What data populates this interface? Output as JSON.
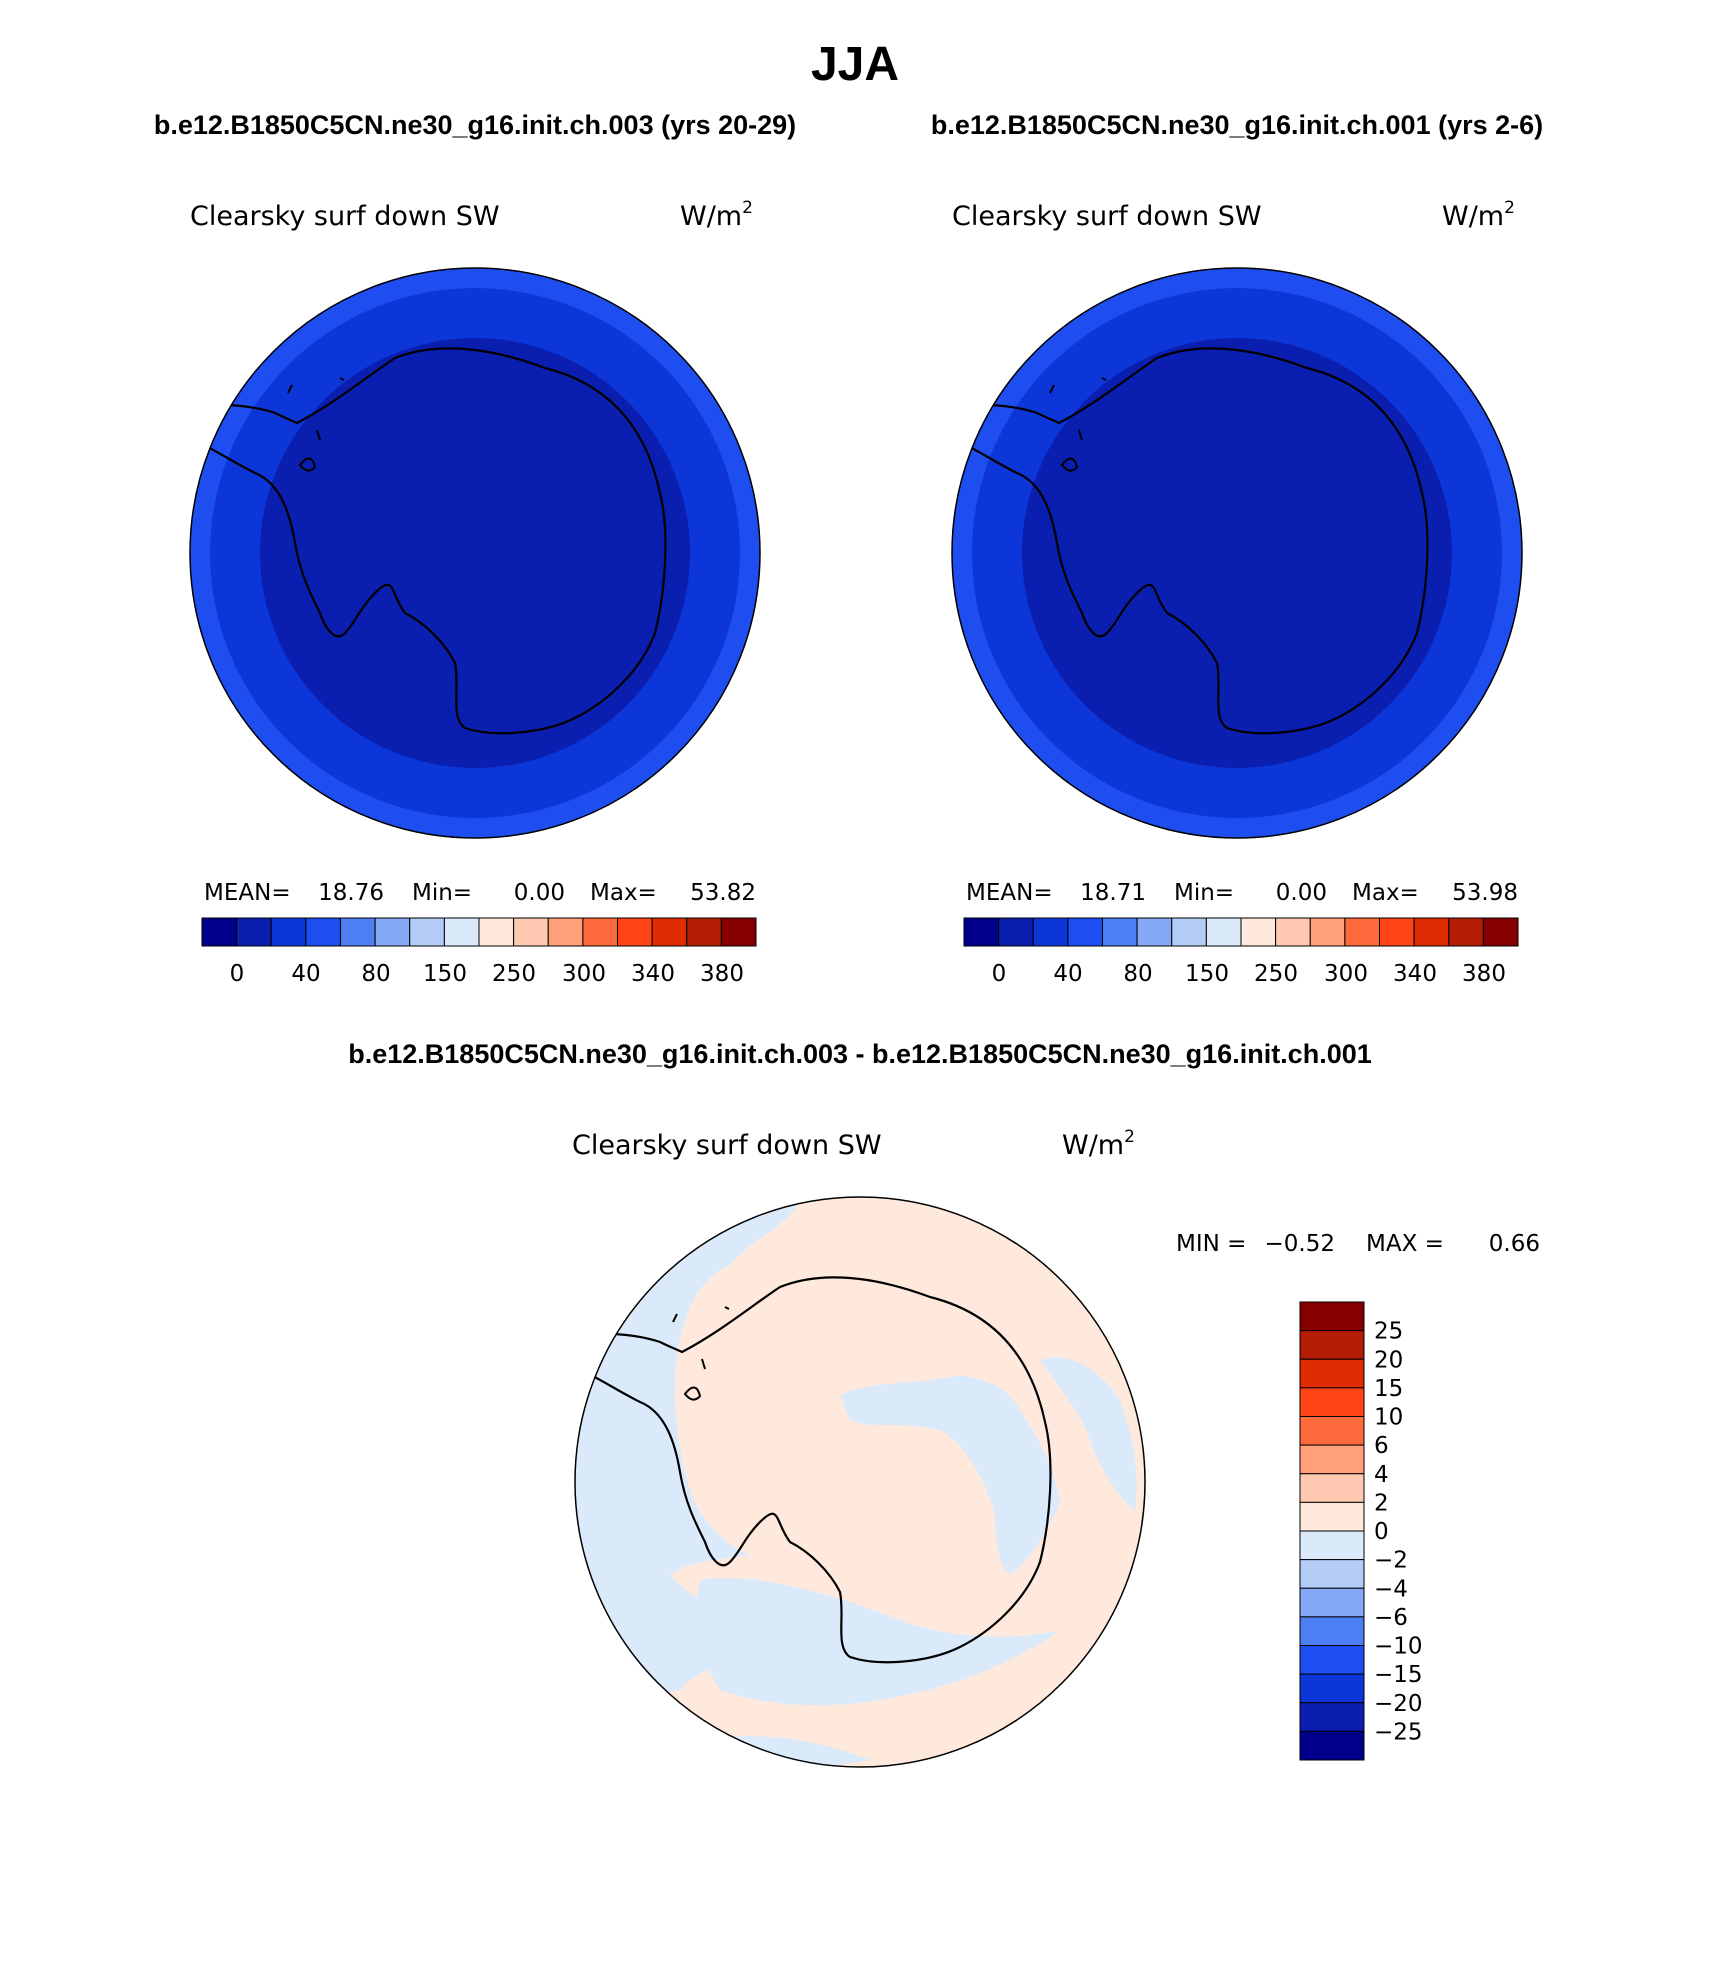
{
  "title": "JJA",
  "panels": [
    {
      "case_title": "b.e12.B1850C5CN.ne30_g16.init.ch.003 (yrs 20-29)",
      "variable": "Clearsky surf down SW",
      "units_base": "W/m",
      "units_exp": "2",
      "stats": [
        {
          "label": "MEAN=",
          "value": "18.76"
        },
        {
          "label": "Min=",
          "value": "0.00"
        },
        {
          "label": "Max=",
          "value": "53.82"
        }
      ],
      "colorbar_labels": [
        "0",
        "40",
        "80",
        "150",
        "250",
        "300",
        "340",
        "380"
      ],
      "field": {
        "ring_value_outer": 40,
        "ring_value_inner": 20
      }
    },
    {
      "case_title": "b.e12.B1850C5CN.ne30_g16.init.ch.001 (yrs 2-6)",
      "variable": "Clearsky surf down SW",
      "units_base": "W/m",
      "units_exp": "2",
      "stats": [
        {
          "label": "MEAN=",
          "value": "18.71"
        },
        {
          "label": "Min=",
          "value": "0.00"
        },
        {
          "label": "Max=",
          "value": "53.98"
        }
      ],
      "colorbar_labels": [
        "0",
        "40",
        "80",
        "150",
        "250",
        "300",
        "340",
        "380"
      ],
      "field": {
        "ring_value_outer": 40,
        "ring_value_inner": 20
      }
    }
  ],
  "abs_colors": [
    "#00008a",
    "#0a1fb0",
    "#0c36d8",
    "#1e4ef0",
    "#4d7ef3",
    "#85a9f6",
    "#b4ccf8",
    "#dbeafb",
    "#ffe9dc",
    "#ffc8b0",
    "#ffa07a",
    "#ff6a3d",
    "#ff4418",
    "#e02c02",
    "#b41c05",
    "#870000"
  ],
  "diff_panel": {
    "title": "b.e12.B1850C5CN.ne30_g16.init.ch.003 - b.e12.B1850C5CN.ne30_g16.init.ch.001",
    "variable": "Clearsky surf down SW",
    "units_base": "W/m",
    "units_exp": "2",
    "min_label": "MIN =",
    "min_value": "−0.52",
    "max_label": "MAX =",
    "max_value": "0.66",
    "colorbar_labels": [
      "25",
      "20",
      "15",
      "10",
      "6",
      "4",
      "2",
      "0",
      "−2",
      "−4",
      "−6",
      "−10",
      "−15",
      "−20",
      "−25"
    ],
    "colorbar_colors": [
      "#870000",
      "#b41c05",
      "#e02c02",
      "#ff4418",
      "#ff6a3d",
      "#ffa07a",
      "#ffc8b0",
      "#ffe9dc",
      "#dbeafb",
      "#b4ccf8",
      "#85a9f6",
      "#4d7ef3",
      "#1e4ef0",
      "#0c36d8",
      "#0a1fb0",
      "#00008a"
    ],
    "positive_color": "#ffe9dc",
    "negative_color": "#dbeafb"
  }
}
